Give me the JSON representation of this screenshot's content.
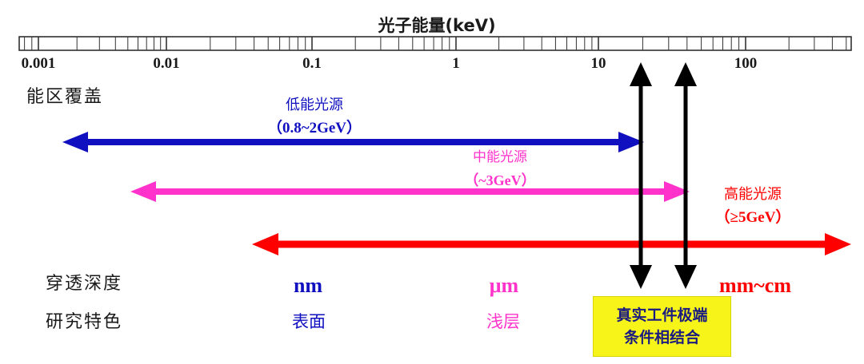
{
  "title": "光子能量(keV)",
  "scale": {
    "ticks": [
      "0.001",
      "0.01",
      "0.1",
      "1",
      "10",
      "100"
    ]
  },
  "row_labels": {
    "coverage": "能区覆盖",
    "penetration": "穿透深度",
    "feature": "研究特色"
  },
  "sources": [
    {
      "name": "低能光源",
      "energy": "（0.8~2GeV）",
      "color": "#1010c0",
      "depth": "nm",
      "feature": "表面"
    },
    {
      "name": "中能光源",
      "energy": "（~3GeV）",
      "color": "#ff33cc",
      "depth": "μm",
      "feature": "浅层"
    },
    {
      "name": "高能光源",
      "energy": "（≥5GeV）",
      "color": "#ff0000",
      "depth": "mm~cm",
      "feature": ""
    }
  ],
  "highlight": {
    "line1": "真实工件极端",
    "line2": "条件相结合",
    "background": "#f7f41a"
  },
  "colors": {
    "black": "#000000",
    "text": "#1a1a1a"
  }
}
